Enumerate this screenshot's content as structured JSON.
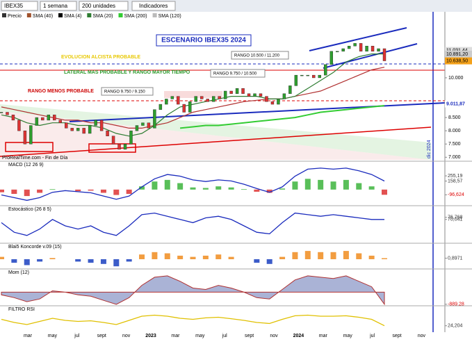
{
  "toolbar": {
    "symbol": "IBEX35",
    "period": "1 semana",
    "units": "200 unidades",
    "indicators": "Indicadores"
  },
  "legend": [
    "Precio",
    "SMA (40)",
    "SMA (4)",
    "SMA (20)",
    "SMA (200)",
    "SMA (120)"
  ],
  "main": {
    "ylim": [
      6850,
      12150
    ],
    "yticks": [
      {
        "value": 11000,
        "label": "11.000"
      },
      {
        "value": 10000,
        "label": "10.000"
      },
      {
        "value": 8500,
        "label": "8.500"
      },
      {
        "value": 8000,
        "label": "8.000"
      },
      {
        "value": 7500,
        "label": "7.500"
      },
      {
        "value": 7000,
        "label": "7.000"
      }
    ],
    "tags": [
      {
        "value": 11031.44,
        "label": "11.031,44"
      },
      {
        "value": 10891.2,
        "label": "10.891,20"
      },
      {
        "value": 10638.5,
        "label": "10.638,50"
      },
      {
        "value": 9011.87,
        "label": "9.011,87"
      }
    ],
    "price": [
      8700,
      8600,
      8400,
      8000,
      7500,
      8200,
      8500,
      8400,
      8600,
      8400,
      8300,
      8100,
      8000,
      8100,
      7900,
      8200,
      8400,
      8000,
      7800,
      7500,
      7300,
      7500,
      8000,
      8200,
      8300,
      8100,
      8800,
      9000,
      9200,
      9300,
      9000,
      8700,
      9100,
      9300,
      9200,
      9100,
      9300,
      9200,
      9500,
      9400,
      9600,
      9400,
      9300,
      9400,
      9300,
      9100,
      9000,
      9200,
      9400,
      9700,
      10100,
      10100,
      10100,
      10000,
      10100,
      10500,
      11000,
      11000,
      11100,
      11200,
      11300,
      11000,
      11200,
      11000,
      11100,
      10640
    ],
    "sma40": [
      8900,
      8800,
      8700,
      8600,
      8500,
      8400,
      8400,
      8300,
      8300,
      8200,
      8100,
      8100,
      8200,
      8300,
      8500,
      8700,
      8800,
      8900,
      9000,
      9100,
      9150,
      9200,
      9200,
      9300,
      9400,
      9500,
      9700,
      9900,
      10100,
      10300,
      10400
    ],
    "sma20": [
      8600,
      8500,
      8300,
      8200,
      8300,
      8300,
      8200,
      8200,
      8100,
      7900,
      7800,
      7900,
      8200,
      8600,
      8900,
      9000,
      9100,
      9200,
      9300,
      9300,
      9300,
      9200,
      9200,
      9300,
      9600,
      9900,
      10200,
      10600,
      10800,
      10900,
      10900
    ],
    "sma200": [
      null,
      null,
      null,
      null,
      null,
      null,
      null,
      null,
      null,
      null,
      null,
      null,
      null,
      null,
      8100,
      8150,
      8200,
      8200,
      8250,
      8300,
      8350,
      8400,
      8450,
      8500,
      8600,
      8700,
      8750,
      8800,
      8850,
      8900,
      8950
    ],
    "annotations": {
      "title": "ESCENARIO IBEX35 2024",
      "bull": "EVOLUCION ALCISTA PROBABLE",
      "lateral": "LATERAL MAS PROBABLE Y RANGO MAYOR TIEMPO",
      "bear": "RANGO MENOS PROBABLE",
      "range1": "RANGO 10.500 / 11.200",
      "range2": "RANGO 9.750 / 10.500",
      "range3": "RANGO 9.750 / 9.150",
      "source": "ProRealTime.com - Fin de Día",
      "future": "dic 2024"
    }
  },
  "panels": [
    {
      "title": "MACD (12 26 9)",
      "ylim": [
        -300,
        450
      ],
      "hist": [
        -50,
        -80,
        -120,
        -60,
        10,
        0,
        -30,
        -20,
        -60,
        -100,
        -80,
        60,
        150,
        180,
        120,
        40,
        30,
        60,
        40,
        10,
        -40,
        -60,
        20,
        150,
        200,
        180,
        150,
        180,
        120,
        60,
        -96.624
      ],
      "line": [
        -100,
        -150,
        -200,
        -150,
        -50,
        -20,
        -40,
        -60,
        -120,
        -180,
        -120,
        50,
        200,
        280,
        250,
        180,
        150,
        180,
        160,
        100,
        20,
        -50,
        50,
        250,
        380,
        400,
        380,
        400,
        350,
        280,
        158.57
      ],
      "tags": [
        {
          "value": 255.19,
          "label": "255,19"
        },
        {
          "value": 158.57,
          "label": "158,57"
        },
        {
          "value": -96.624,
          "label": "-96,624"
        }
      ]
    },
    {
      "title": "Estocástico (26 8 5)",
      "ylim": [
        0,
        100
      ],
      "line": [
        60,
        30,
        20,
        40,
        70,
        50,
        40,
        50,
        30,
        20,
        50,
        85,
        90,
        80,
        70,
        60,
        75,
        80,
        70,
        50,
        30,
        25,
        60,
        90,
        85,
        80,
        85,
        80,
        75,
        70,
        70.041
      ],
      "tags": [
        {
          "value": 76.768,
          "label": "76,768"
        },
        {
          "value": 70.041,
          "label": "70,041"
        }
      ]
    },
    {
      "title": "Blai5 Koncorde v.09 (15)",
      "ylim": [
        -10,
        10
      ],
      "hist": [
        2,
        -3,
        -5,
        -2,
        1,
        0,
        -2,
        -3,
        -4,
        -6,
        -2,
        4,
        6,
        5,
        3,
        2,
        3,
        4,
        2,
        0,
        -3,
        -4,
        2,
        6,
        7,
        6,
        6,
        7,
        5,
        3,
        0.8971
      ],
      "tags": [
        {
          "value": 0.8971,
          "label": "0,8971"
        }
      ]
    },
    {
      "title": "Mom (12)",
      "ylim": [
        -1000,
        1400
      ],
      "area": [
        -200,
        -400,
        -700,
        -500,
        100,
        0,
        -200,
        -300,
        -600,
        -900,
        -400,
        500,
        1100,
        1200,
        800,
        300,
        200,
        500,
        300,
        0,
        -400,
        -500,
        200,
        900,
        1200,
        1100,
        1000,
        1200,
        800,
        400,
        -889.28
      ],
      "tags": [
        {
          "value": -889.28,
          "label": "-889,28"
        }
      ]
    },
    {
      "title": "FILTRO RSI",
      "ylim": [
        0,
        100
      ],
      "line": [
        55,
        40,
        30,
        45,
        60,
        50,
        45,
        48,
        40,
        30,
        50,
        70,
        75,
        70,
        60,
        55,
        62,
        65,
        58,
        50,
        40,
        35,
        55,
        72,
        75,
        70,
        70,
        72,
        65,
        55,
        24.204
      ],
      "tags": [
        {
          "value": 24.204,
          "label": "24,204"
        }
      ]
    }
  ],
  "xaxis": [
    "mar",
    "may",
    "jul",
    "sept",
    "nov",
    "2023",
    "mar",
    "may",
    "jul",
    "sept",
    "nov",
    "2024",
    "mar",
    "may",
    "jul",
    "sept",
    "nov"
  ]
}
